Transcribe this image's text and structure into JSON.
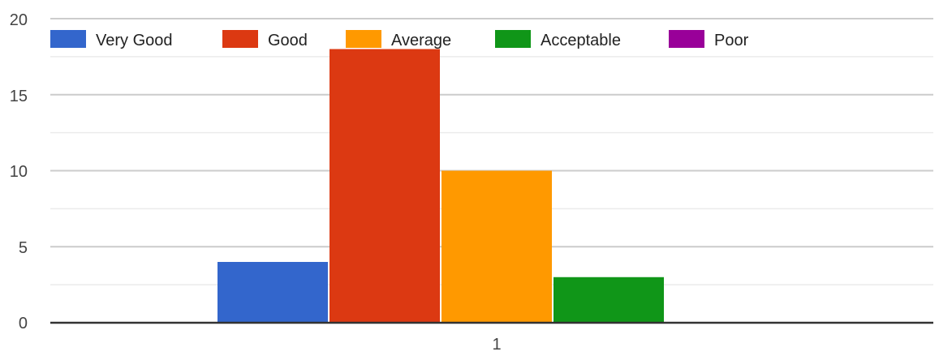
{
  "chart_data": {
    "type": "bar",
    "categories": [
      "1"
    ],
    "series": [
      {
        "name": "Very Good",
        "values": [
          4
        ],
        "color": "#3366cc"
      },
      {
        "name": "Good",
        "values": [
          18
        ],
        "color": "#dc3912"
      },
      {
        "name": "Average",
        "values": [
          10
        ],
        "color": "#ff9900"
      },
      {
        "name": "Acceptable",
        "values": [
          3
        ],
        "color": "#109618"
      },
      {
        "name": "Poor",
        "values": [
          0
        ],
        "color": "#990099"
      }
    ],
    "ylim": [
      0,
      20
    ],
    "yticks": [
      "0",
      "5",
      "10",
      "15",
      "20"
    ],
    "grid": true,
    "legend_position": "top"
  }
}
